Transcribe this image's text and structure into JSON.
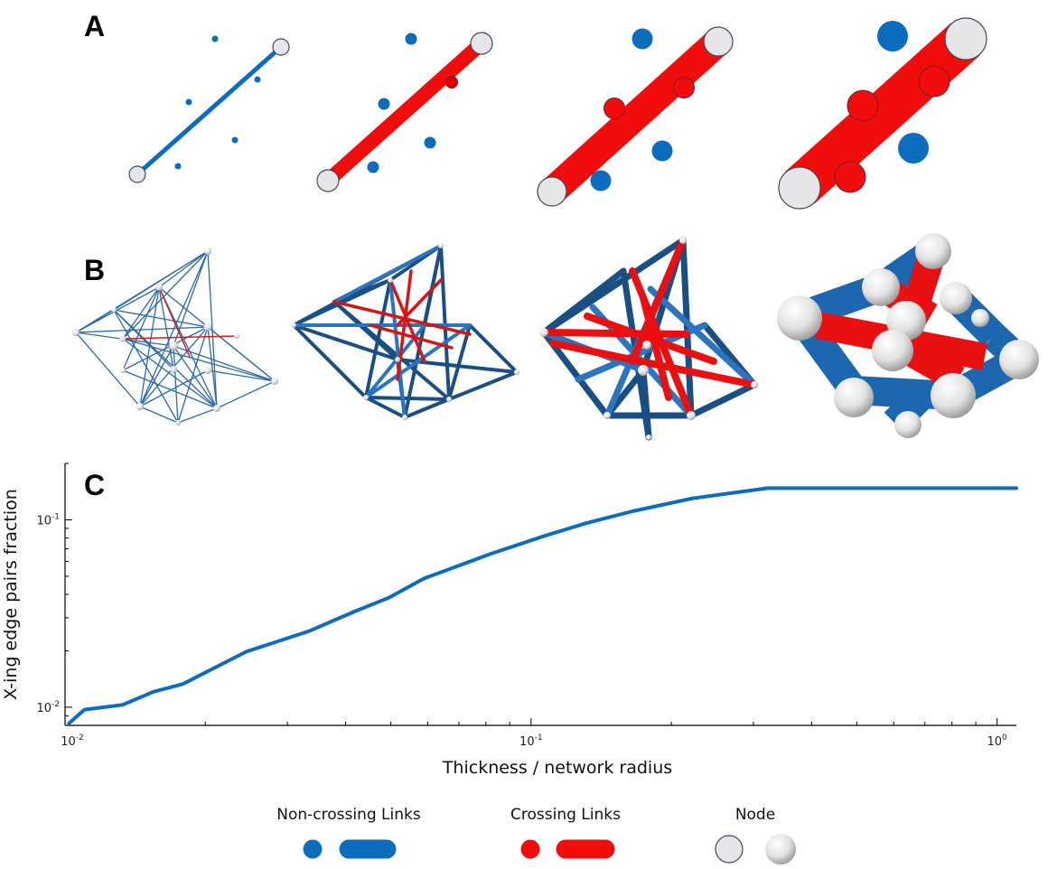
{
  "panels": {
    "a": "A",
    "b": "B",
    "c": "C"
  },
  "colors": {
    "noncrossing": "#0c6dbf",
    "crossing": "#f20d0d",
    "node_fill": "#e6e6e8",
    "node_stroke": "#404858",
    "edge_dark": "#1a4f86"
  },
  "chart_data": {
    "type": "line",
    "xlabel": "Thickness / network radius",
    "ylabel": "X-ing edge pairs fraction",
    "x_scale": "log",
    "y_scale": "log",
    "xlim": [
      0.01,
      1.1
    ],
    "ylim": [
      0.008,
      0.2
    ],
    "x_ticks": [
      {
        "base": "10",
        "exp": "-2"
      },
      {
        "base": "10",
        "exp": "-1"
      },
      {
        "base": "10",
        "exp": "0"
      }
    ],
    "y_ticks": [
      {
        "base": "10",
        "exp": "-2"
      },
      {
        "base": "10",
        "exp": "-1"
      }
    ],
    "series": [
      {
        "color": "#0c6dbf",
        "x": [
          0.0102,
          0.011,
          0.0133,
          0.0155,
          0.0179,
          0.0245,
          0.0333,
          0.0418,
          0.0495,
          0.059,
          0.082,
          0.107,
          0.131,
          0.165,
          0.222,
          0.322,
          1.1
        ],
        "y": [
          0.0082,
          0.0097,
          0.0103,
          0.0121,
          0.0133,
          0.0198,
          0.0254,
          0.0324,
          0.0384,
          0.0487,
          0.0659,
          0.0821,
          0.0958,
          0.111,
          0.1301,
          0.1476,
          0.1476
        ]
      }
    ]
  },
  "legend": {
    "noncrossing_label": "Non-crossing Links",
    "crossing_label": "Crossing Links",
    "node_label": "Node"
  }
}
